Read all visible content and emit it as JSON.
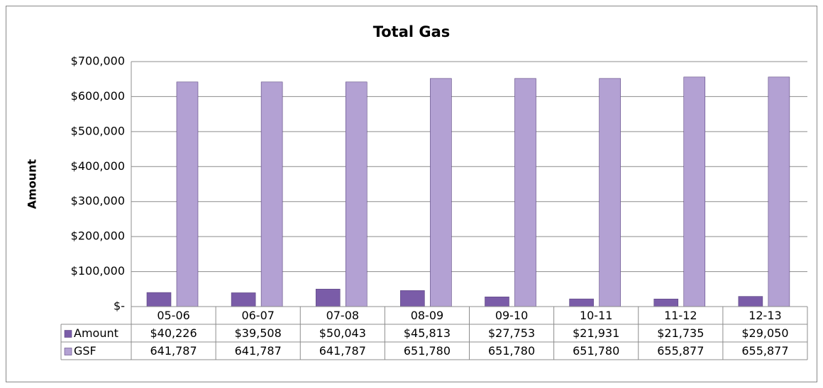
{
  "chart_data": {
    "type": "bar",
    "title": "Total Gas",
    "y_label": "Amount",
    "categories": [
      "05-06",
      "06-07",
      "07-08",
      "08-09",
      "09-10",
      "10-11",
      "11-12",
      "12-13"
    ],
    "series": [
      {
        "name": "Amount",
        "color": "#7a5ca8",
        "values": [
          40226,
          39508,
          50043,
          45813,
          27753,
          21931,
          21735,
          29050
        ],
        "value_labels": [
          "$40,226",
          "$39,508",
          "$50,043",
          "$45,813",
          "$27,753",
          "$21,931",
          "$21,735",
          "$29,050"
        ]
      },
      {
        "name": "GSF",
        "color": "#b3a1d3",
        "values": [
          641787,
          641787,
          641787,
          651780,
          651780,
          651780,
          655877,
          655877
        ],
        "value_labels": [
          "641,787",
          "641,787",
          "641,787",
          "651,780",
          "651,780",
          "651,780",
          "655,877",
          "655,877"
        ]
      }
    ],
    "ylim": [
      0,
      700000
    ],
    "yticks": [
      {
        "value": 0,
        "label": "$-"
      },
      {
        "value": 100000,
        "label": "$100,000"
      },
      {
        "value": 200000,
        "label": "$200,000"
      },
      {
        "value": 300000,
        "label": "$300,000"
      },
      {
        "value": 400000,
        "label": "$400,000"
      },
      {
        "value": 500000,
        "label": "$500,000"
      },
      {
        "value": 600000,
        "label": "$600,000"
      },
      {
        "value": 700000,
        "label": "$700,000"
      }
    ],
    "grid": true
  }
}
